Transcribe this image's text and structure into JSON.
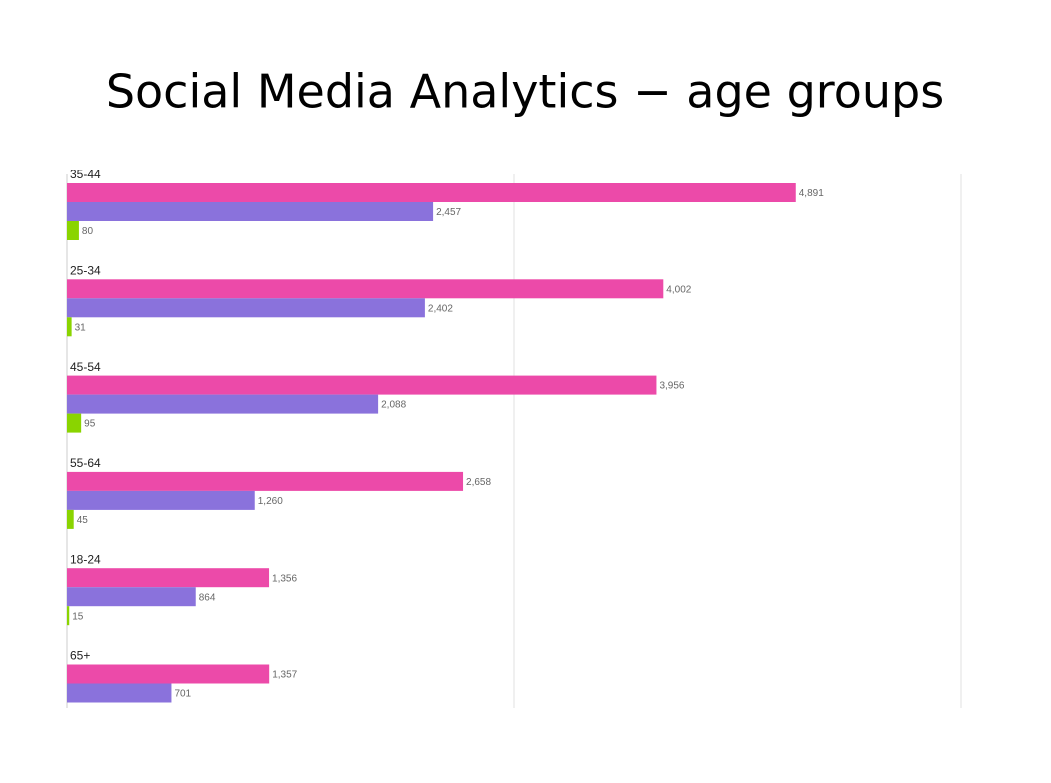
{
  "chart_data": {
    "type": "hbar",
    "title": "Social Media Analytics − age groups",
    "categories": [
      "35-44",
      "25-34",
      "45-54",
      "55-64",
      "18-24",
      "65+"
    ],
    "series": [
      {
        "color": "#ec4aa9",
        "values": [
          4891,
          4002,
          3956,
          2658,
          1356,
          1357
        ],
        "value_labels": [
          "4,891",
          "4,002",
          "3,956",
          "2,658",
          "1,356",
          "1,357"
        ]
      },
      {
        "color": "#8a72dc",
        "values": [
          2457,
          2402,
          2088,
          1260,
          864,
          701
        ],
        "value_labels": [
          "2,457",
          "2,402",
          "2,088",
          "1,260",
          "864",
          "701"
        ]
      },
      {
        "color": "#8ad400",
        "values": [
          80,
          31,
          95,
          45,
          15,
          null
        ],
        "value_labels": [
          "80",
          "31",
          "95",
          "45",
          "15",
          null
        ]
      }
    ],
    "xlim": [
      0,
      6000
    ],
    "xticks": [
      0,
      3000,
      6000
    ],
    "grid": true
  }
}
